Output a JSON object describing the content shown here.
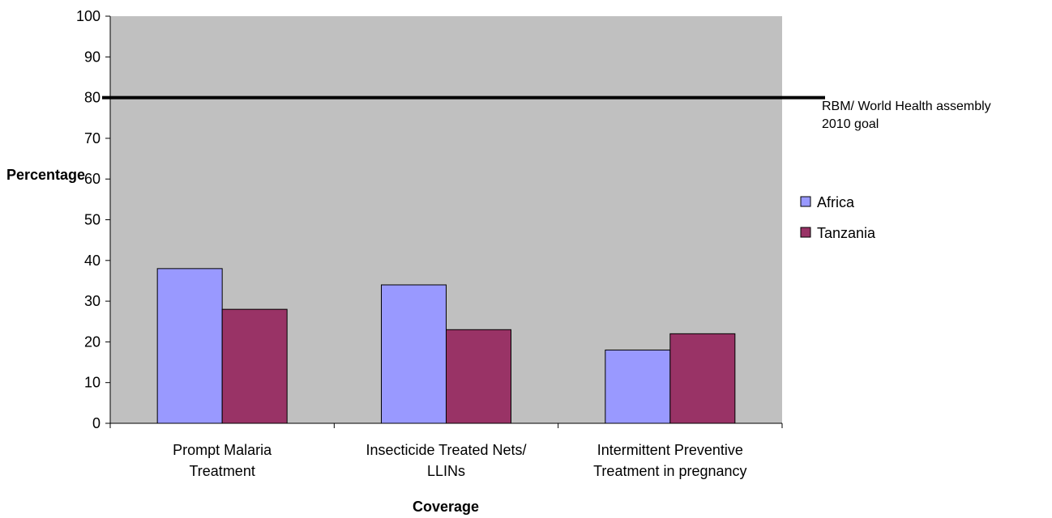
{
  "chart_data": {
    "type": "bar",
    "categories": [
      [
        "Prompt Malaria",
        "Treatment"
      ],
      [
        "Insecticide Treated Nets/",
        "LLINs"
      ],
      [
        "Intermittent Preventive",
        "Treatment in pregnancy"
      ]
    ],
    "series": [
      {
        "name": "Africa",
        "values": [
          38,
          34,
          18
        ],
        "color": "#9999ff"
      },
      {
        "name": "Tanzania",
        "values": [
          28,
          23,
          22
        ],
        "color": "#993366"
      }
    ],
    "ylim": [
      0,
      100
    ],
    "yticks": [
      0,
      10,
      20,
      30,
      40,
      50,
      60,
      70,
      80,
      90,
      100
    ],
    "xlabel": "Coverage",
    "ylabel": "Percentage",
    "legend_position": "right",
    "plot_background": "#c0c0c0",
    "grid": false,
    "reference_line": {
      "value": 80,
      "label": [
        "RBM/ World Health assembly",
        "2010 goal"
      ],
      "color": "#000000"
    }
  }
}
